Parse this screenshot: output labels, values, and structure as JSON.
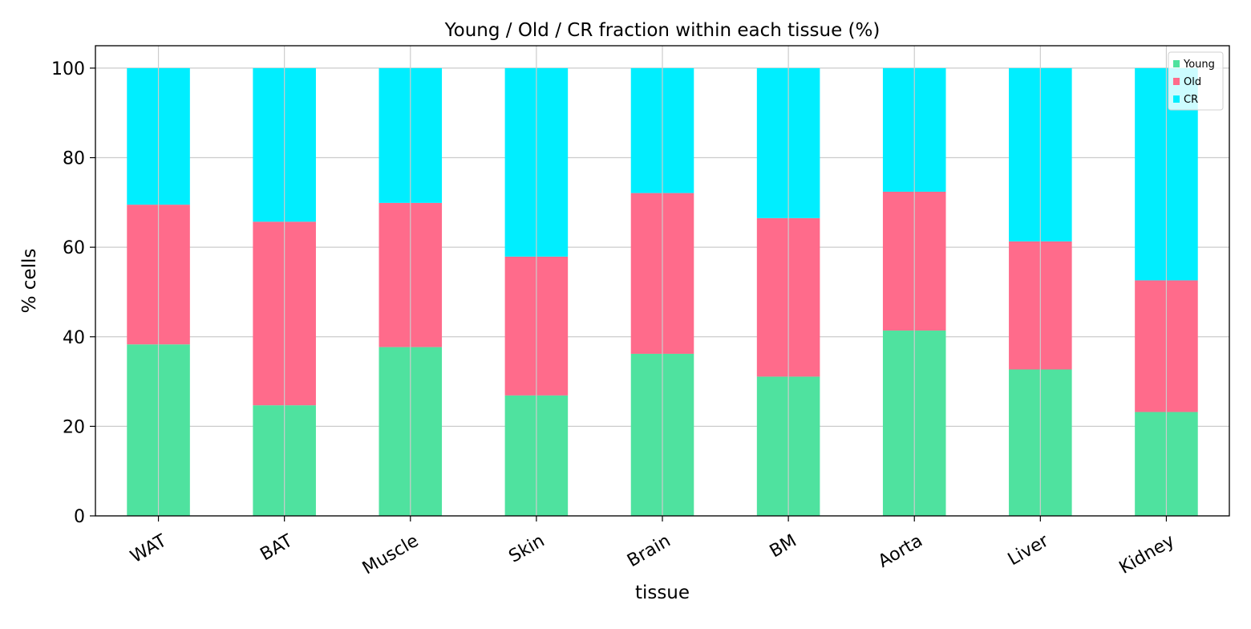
{
  "chart_data": {
    "type": "bar",
    "stacked": true,
    "title": "Young / Old / CR fraction within each tissue (%)",
    "xlabel": "tissue",
    "ylabel": "% cells",
    "ylim": [
      0,
      105
    ],
    "yticks": [
      0,
      20,
      40,
      60,
      80,
      100
    ],
    "grid": true,
    "legend_position": "top-right",
    "categories": [
      "WAT",
      "BAT",
      "Muscle",
      "Skin",
      "Brain",
      "BM",
      "Aorta",
      "Liver",
      "Kidney"
    ],
    "series": [
      {
        "name": "Young",
        "color": "#4fe29f",
        "values": [
          38.3,
          24.7,
          37.7,
          26.9,
          36.2,
          31.1,
          41.4,
          32.7,
          23.2
        ]
      },
      {
        "name": "Old",
        "color": "#ff6b8b",
        "values": [
          31.2,
          41.0,
          32.2,
          31.0,
          35.9,
          35.4,
          31.0,
          28.6,
          29.4
        ]
      },
      {
        "name": "CR",
        "color": "#00eeff",
        "values": [
          30.5,
          34.3,
          30.1,
          42.1,
          27.9,
          33.5,
          27.6,
          38.7,
          47.4
        ]
      }
    ]
  }
}
